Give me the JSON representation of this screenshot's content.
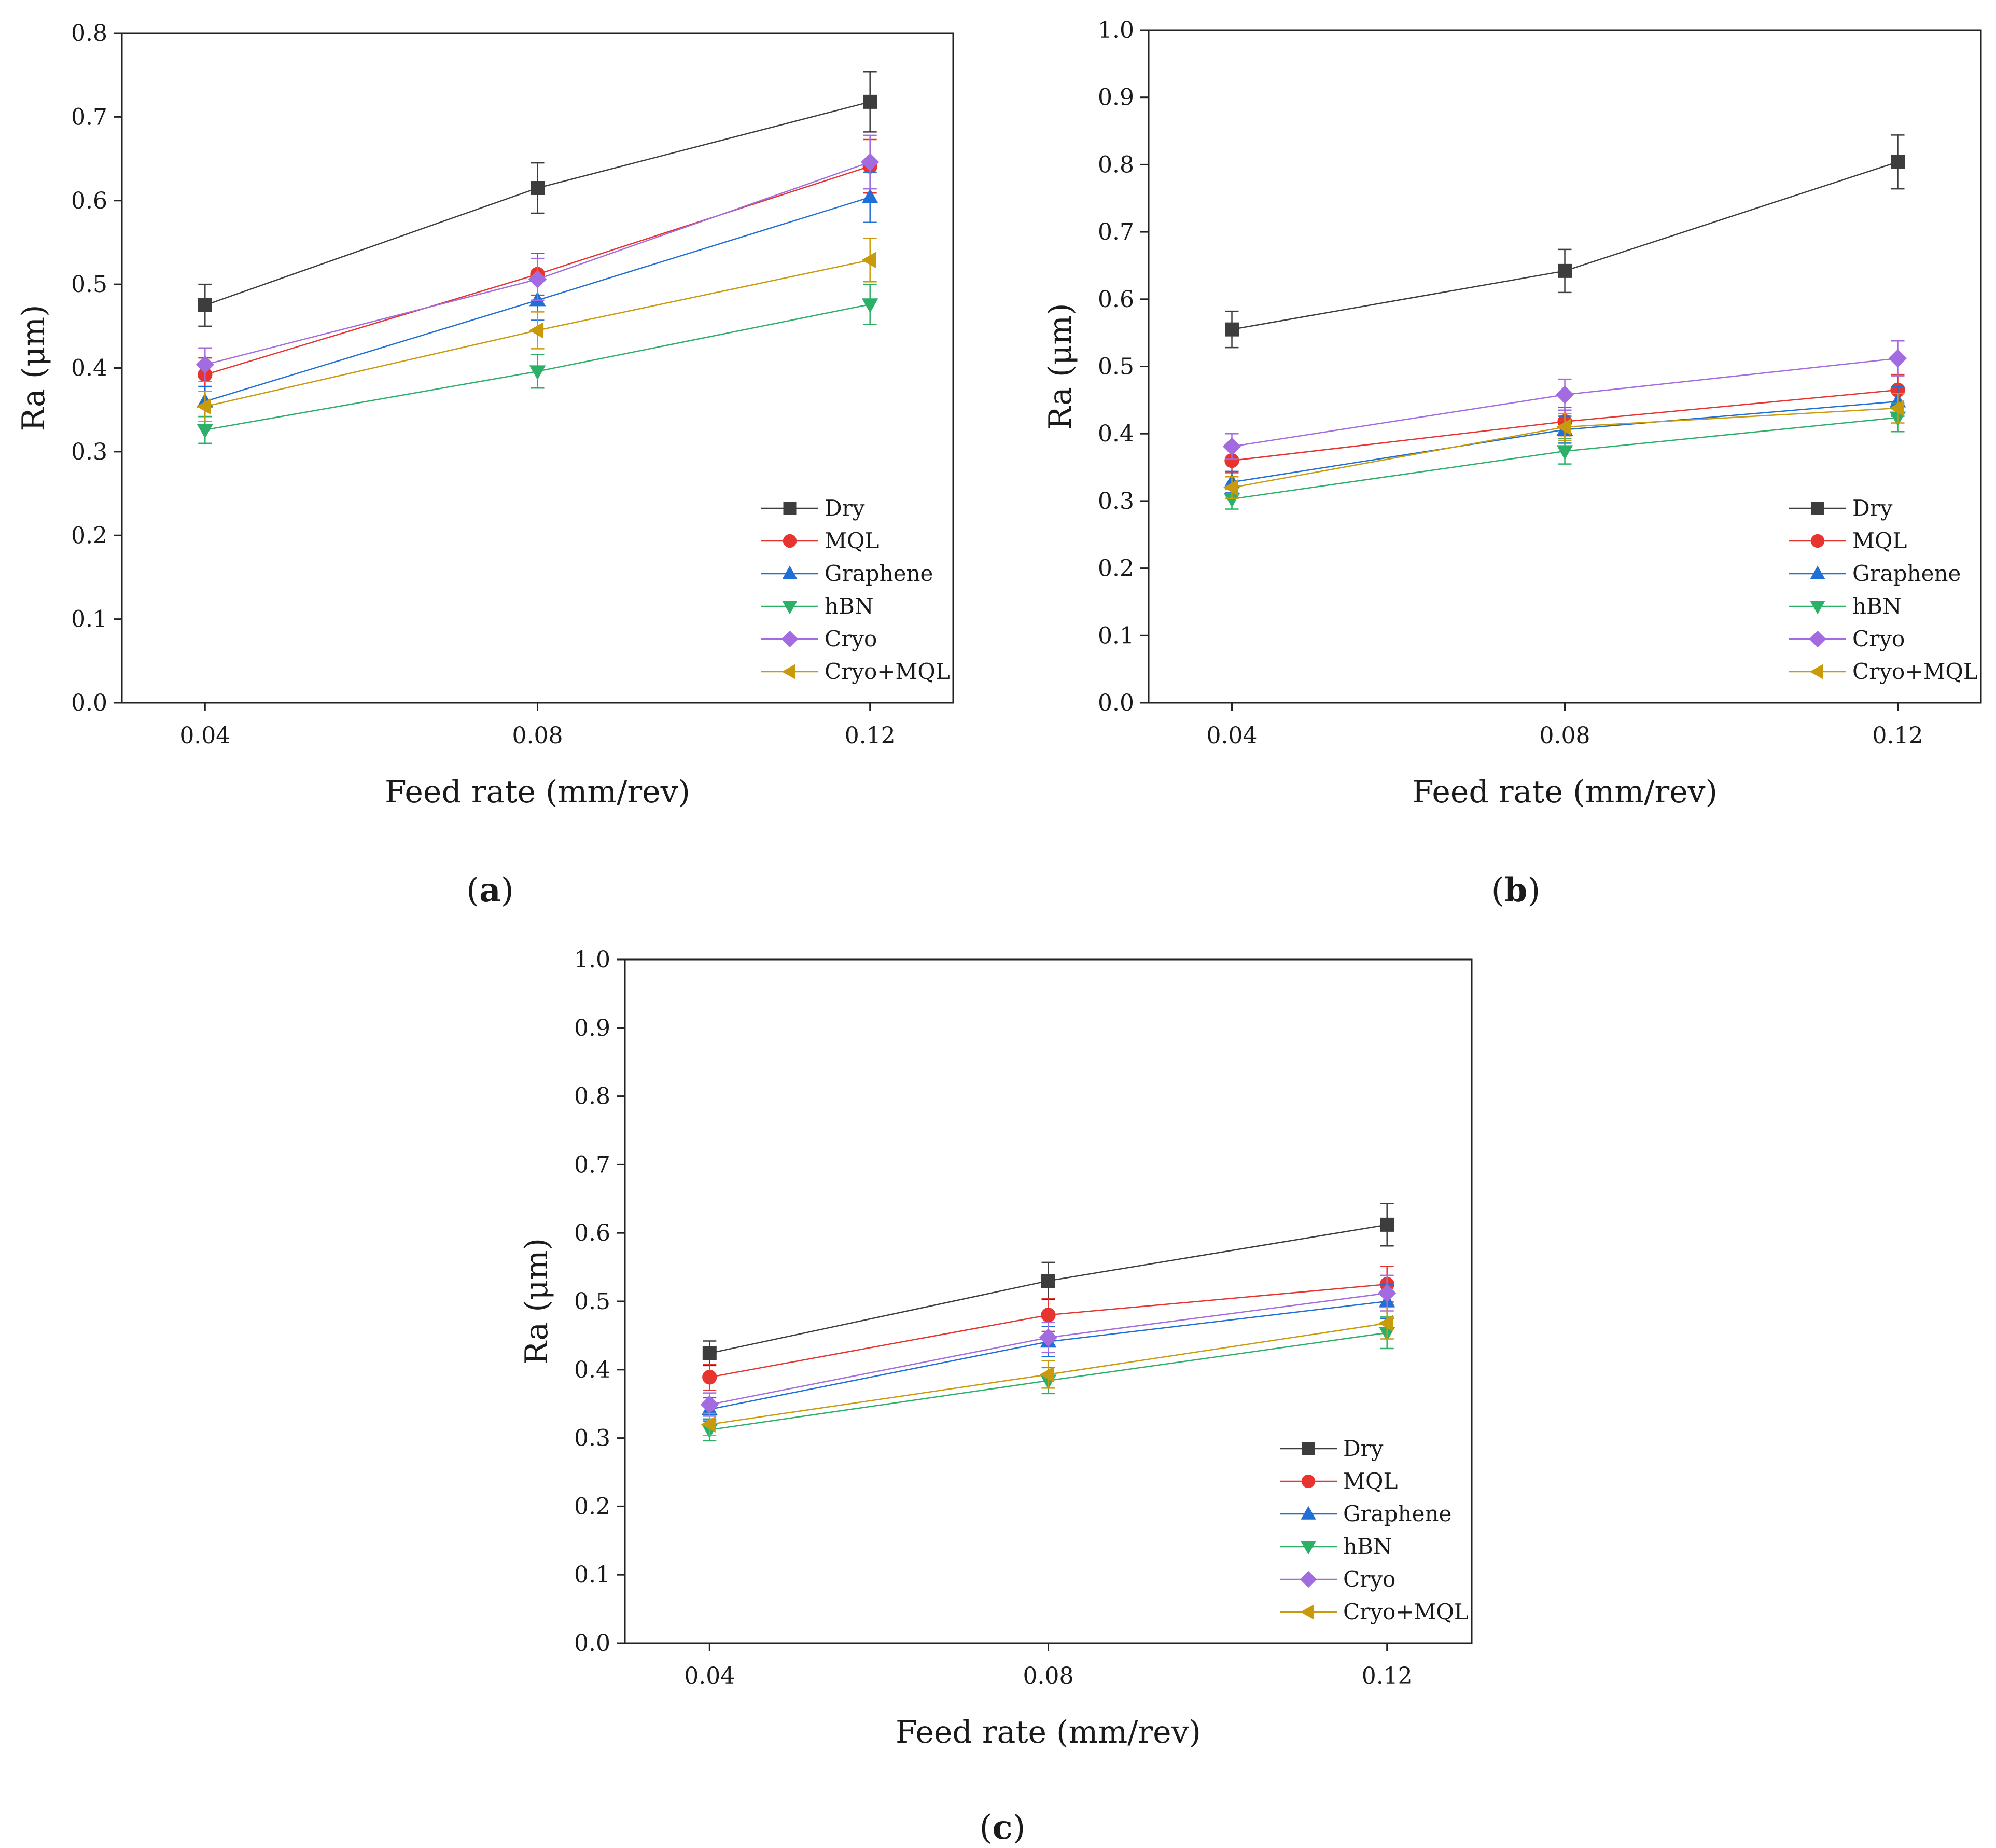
{
  "colors": {
    "Dry": "#3d3d3d",
    "MQL": "#e8342f",
    "Graphene": "#1f6fd6",
    "hBN": "#2cb067",
    "Cryo": "#a36be0",
    "Cryo+MQL": "#c99a0b"
  },
  "markers": {
    "Dry": "square",
    "MQL": "circle",
    "Graphene": "triangle-up",
    "hBN": "triangle-down",
    "Cryo": "diamond",
    "Cryo+MQL": "triangle-left"
  },
  "chart_data": [
    {
      "type": "line",
      "panel_label": "a",
      "xlabel": "Feed rate (mm/rev)",
      "ylabel": "Ra (μm)",
      "categories": [
        "0.04",
        "0.08",
        "0.12"
      ],
      "x": [
        0.04,
        0.08,
        0.12
      ],
      "xlim": [
        0.03,
        0.13
      ],
      "ylim": [
        0.0,
        0.8
      ],
      "yticks": [
        0.0,
        0.1,
        0.2,
        0.3,
        0.4,
        0.5,
        0.6,
        0.7,
        0.8
      ],
      "ytick_labels": [
        "0.0",
        "0.1",
        "0.2",
        "0.3",
        "0.4",
        "0.5",
        "0.6",
        "0.7",
        "0.8"
      ],
      "legend_position": "bottom-right",
      "series": [
        {
          "name": "Dry",
          "values": [
            0.475,
            0.615,
            0.718
          ],
          "errors": [
            0.025,
            0.03,
            0.036
          ]
        },
        {
          "name": "MQL",
          "values": [
            0.392,
            0.512,
            0.641
          ],
          "errors": [
            0.02,
            0.025,
            0.032
          ]
        },
        {
          "name": "Graphene",
          "values": [
            0.36,
            0.481,
            0.604
          ],
          "errors": [
            0.018,
            0.024,
            0.03
          ]
        },
        {
          "name": "hBN",
          "values": [
            0.326,
            0.396,
            0.476
          ],
          "errors": [
            0.016,
            0.02,
            0.024
          ]
        },
        {
          "name": "Cryo",
          "values": [
            0.404,
            0.506,
            0.646
          ],
          "errors": [
            0.02,
            0.025,
            0.032
          ]
        },
        {
          "name": "Cryo+MQL",
          "values": [
            0.354,
            0.445,
            0.529
          ],
          "errors": [
            0.018,
            0.022,
            0.026
          ]
        }
      ]
    },
    {
      "type": "line",
      "panel_label": "b",
      "xlabel": "Feed rate (mm/rev)",
      "ylabel": "Ra (μm)",
      "categories": [
        "0.04",
        "0.08",
        "0.12"
      ],
      "x": [
        0.04,
        0.08,
        0.12
      ],
      "xlim": [
        0.03,
        0.13
      ],
      "ylim": [
        0.0,
        1.0
      ],
      "yticks": [
        0.0,
        0.1,
        0.2,
        0.3,
        0.4,
        0.5,
        0.6,
        0.7,
        0.8,
        0.9,
        1.0
      ],
      "ytick_labels": [
        "0.0",
        "0.1",
        "0.2",
        "0.3",
        "0.4",
        "0.5",
        "0.6",
        "0.7",
        "0.8",
        "0.9",
        "1.0"
      ],
      "legend_position": "bottom-right",
      "series": [
        {
          "name": "Dry",
          "values": [
            0.555,
            0.642,
            0.804
          ],
          "errors": [
            0.027,
            0.032,
            0.04
          ]
        },
        {
          "name": "MQL",
          "values": [
            0.36,
            0.418,
            0.465
          ],
          "errors": [
            0.018,
            0.021,
            0.023
          ]
        },
        {
          "name": "Graphene",
          "values": [
            0.328,
            0.406,
            0.448
          ],
          "errors": [
            0.016,
            0.02,
            0.022
          ]
        },
        {
          "name": "hBN",
          "values": [
            0.303,
            0.374,
            0.424
          ],
          "errors": [
            0.015,
            0.019,
            0.021
          ]
        },
        {
          "name": "Cryo",
          "values": [
            0.381,
            0.458,
            0.512
          ],
          "errors": [
            0.019,
            0.023,
            0.026
          ]
        },
        {
          "name": "Cryo+MQL",
          "values": [
            0.32,
            0.41,
            0.438
          ],
          "errors": [
            0.016,
            0.02,
            0.022
          ]
        }
      ]
    },
    {
      "type": "line",
      "panel_label": "c",
      "xlabel": "Feed rate (mm/rev)",
      "ylabel": "Ra (μm)",
      "categories": [
        "0.04",
        "0.08",
        "0.12"
      ],
      "x": [
        0.04,
        0.08,
        0.12
      ],
      "xlim": [
        0.03,
        0.13
      ],
      "ylim": [
        0.0,
        1.0
      ],
      "yticks": [
        0.0,
        0.1,
        0.2,
        0.3,
        0.4,
        0.5,
        0.6,
        0.7,
        0.8,
        0.9,
        1.0
      ],
      "ytick_labels": [
        "0.0",
        "0.1",
        "0.2",
        "0.3",
        "0.4",
        "0.5",
        "0.6",
        "0.7",
        "0.8",
        "0.9",
        "1.0"
      ],
      "legend_position": "bottom-right",
      "series": [
        {
          "name": "Dry",
          "values": [
            0.424,
            0.53,
            0.612
          ],
          "errors": [
            0.018,
            0.027,
            0.031
          ]
        },
        {
          "name": "MQL",
          "values": [
            0.389,
            0.48,
            0.525
          ],
          "errors": [
            0.019,
            0.024,
            0.026
          ]
        },
        {
          "name": "Graphene",
          "values": [
            0.342,
            0.441,
            0.5
          ],
          "errors": [
            0.017,
            0.022,
            0.025
          ]
        },
        {
          "name": "hBN",
          "values": [
            0.312,
            0.384,
            0.454
          ],
          "errors": [
            0.016,
            0.019,
            0.023
          ]
        },
        {
          "name": "Cryo",
          "values": [
            0.349,
            0.447,
            0.512
          ],
          "errors": [
            0.017,
            0.022,
            0.026
          ]
        },
        {
          "name": "Cryo+MQL",
          "values": [
            0.32,
            0.393,
            0.468
          ],
          "errors": [
            0.016,
            0.02,
            0.023
          ]
        }
      ]
    }
  ]
}
